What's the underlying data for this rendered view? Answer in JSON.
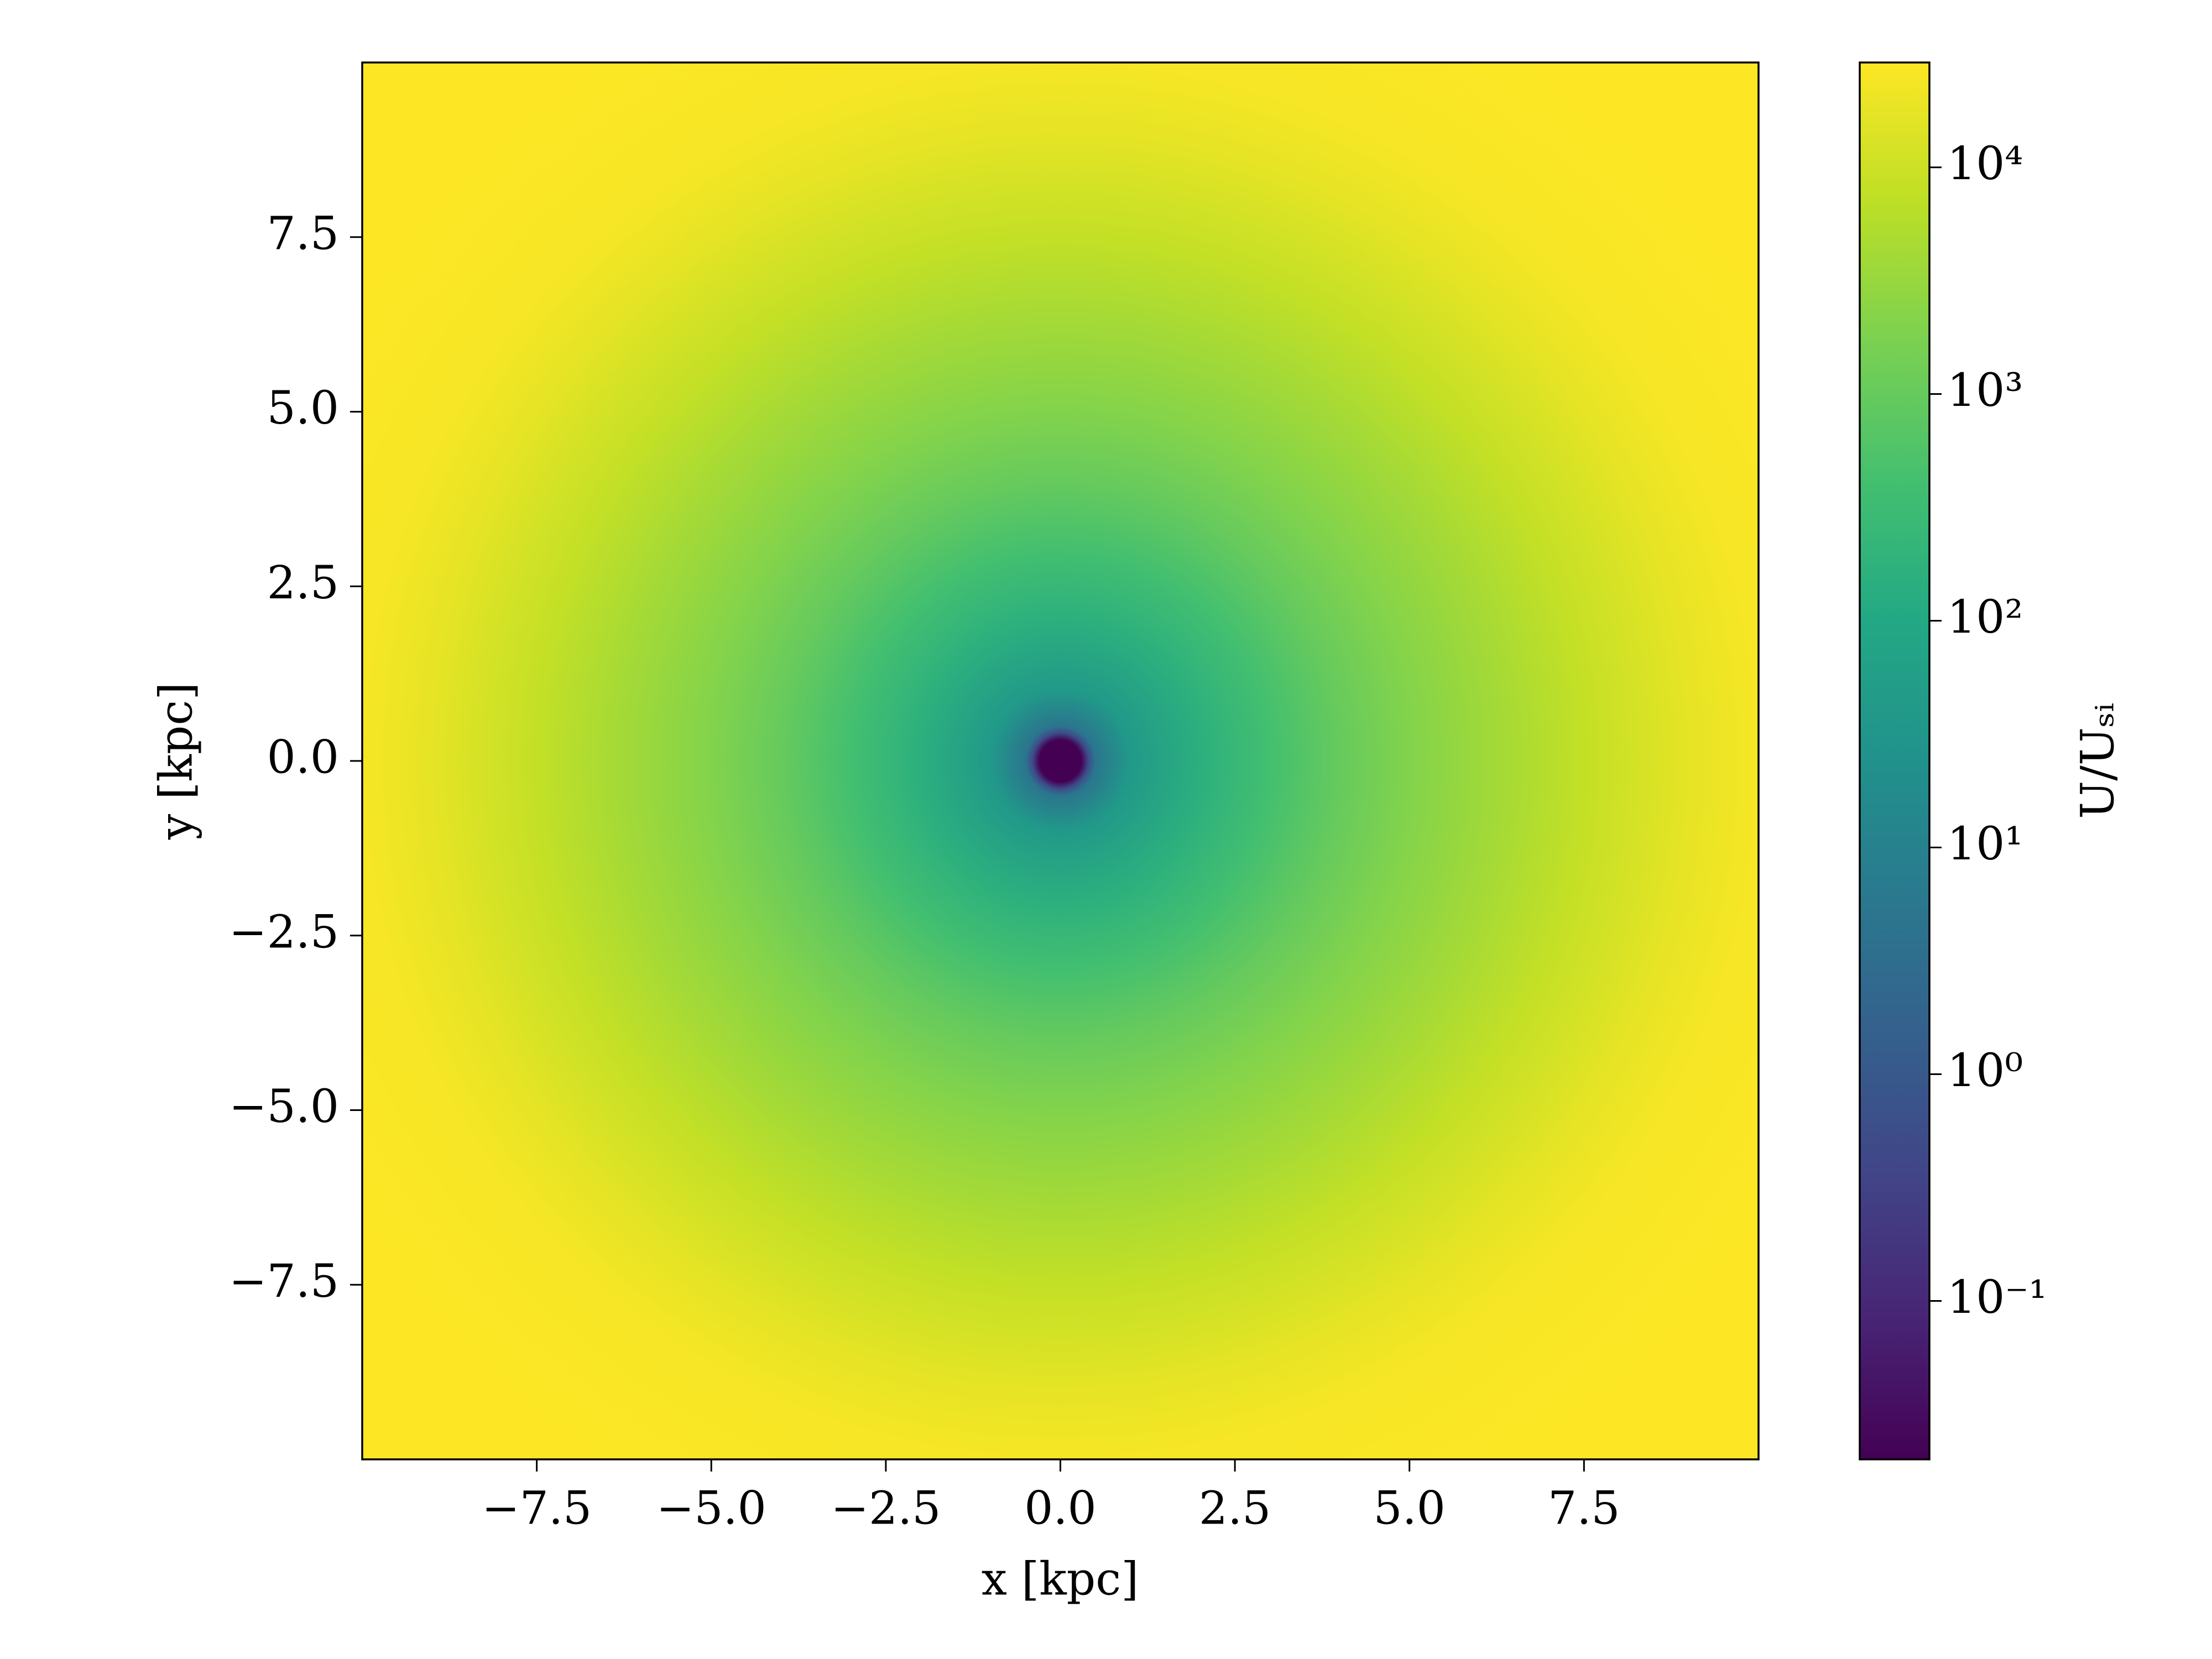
{
  "chart_data": {
    "type": "radial-heatmap",
    "xlabel": "x [kpc]",
    "ylabel": "y [kpc]",
    "colorbar_label": "U/Uₛᵢ",
    "colormap": "viridis",
    "color_scale": "log",
    "xlim": [
      -10,
      10
    ],
    "ylim": [
      -10,
      10
    ],
    "xticks": [
      {
        "value": -7.5,
        "label": "−7.5"
      },
      {
        "value": -5,
        "label": "−5.0"
      },
      {
        "value": -2.5,
        "label": "−2.5"
      },
      {
        "value": 0,
        "label": "0.0"
      },
      2.5,
      {
        "value": 5,
        "label": "5.0"
      },
      7.5
    ],
    "yticks": [
      {
        "value": -7.5,
        "label": "−7.5"
      },
      {
        "value": -5,
        "label": "−5.0"
      },
      {
        "value": -2.5,
        "label": "−2.5"
      },
      {
        "value": 0,
        "label": "0.0"
      },
      2.5,
      {
        "value": 5,
        "label": "5.0"
      },
      7.5
    ],
    "clim": [
      0.02,
      29000
    ],
    "cticks": [
      {
        "value": 0.1,
        "label": "10⁻¹"
      },
      {
        "value": 1,
        "label": "10⁰"
      },
      {
        "value": 10,
        "label": "10¹"
      },
      {
        "value": 100,
        "label": "10²"
      },
      {
        "value": 1000,
        "label": "10³"
      },
      {
        "value": 10000,
        "label": "10⁴"
      }
    ],
    "profile": {
      "r": [
        0,
        0.3,
        0.4,
        0.5,
        1,
        2,
        3,
        4,
        5,
        6,
        7.5,
        9,
        10,
        12,
        14.2
      ],
      "values": [
        0.02,
        0.02,
        0.5,
        5,
        40,
        150,
        400,
        1000,
        2000,
        3500,
        8000,
        17000,
        25000,
        29000,
        29000
      ]
    }
  }
}
